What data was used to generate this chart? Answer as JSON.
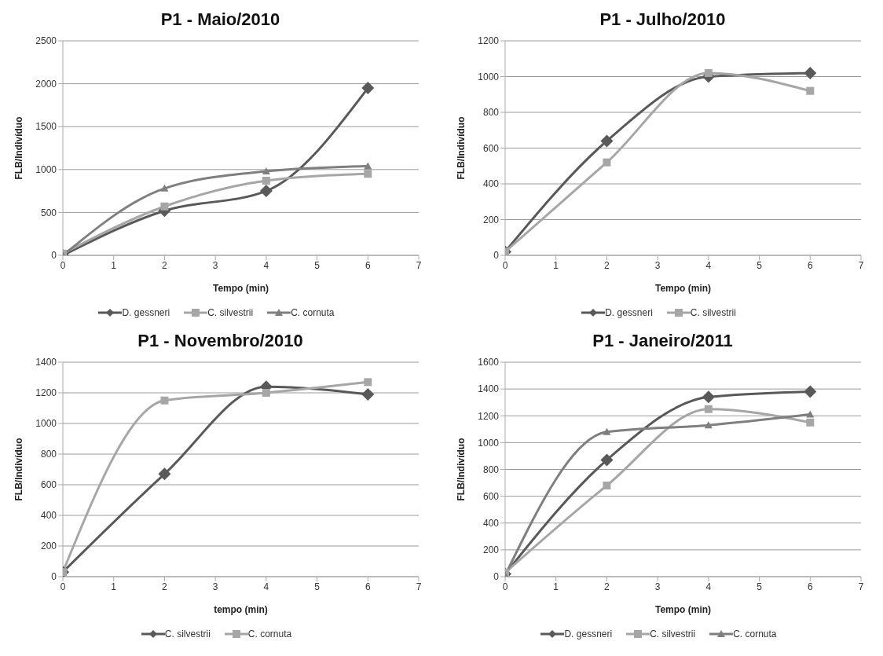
{
  "chart_data": [
    {
      "type": "line",
      "title": "P1 - Maio/2010",
      "xlabel": "Tempo (min)",
      "ylabel": "FLB/Indivíduo",
      "xlim": [
        0,
        7
      ],
      "xticks": [
        0,
        1,
        2,
        3,
        4,
        5,
        6,
        7
      ],
      "ylim": [
        0,
        2500
      ],
      "yticks": [
        0,
        500,
        1000,
        1500,
        2000,
        2500
      ],
      "grid": "y",
      "legend": "bottom",
      "x": [
        0,
        2,
        4,
        6
      ],
      "series": [
        {
          "name": "D. gessneri",
          "color": "#595959",
          "marker": "diamond",
          "values": [
            0,
            520,
            750,
            1950
          ]
        },
        {
          "name": "C. silvestrii",
          "color": "#a6a6a6",
          "marker": "square",
          "values": [
            20,
            570,
            870,
            950
          ]
        },
        {
          "name": "C. cornuta",
          "color": "#7f7f7f",
          "marker": "triangle",
          "values": [
            0,
            780,
            980,
            1040
          ]
        }
      ]
    },
    {
      "type": "line",
      "title": "P1 - Julho/2010",
      "xlabel": "Tempo (min)",
      "ylabel": "FLB/Indivíduo",
      "xlim": [
        0,
        7
      ],
      "xticks": [
        0,
        1,
        2,
        3,
        4,
        5,
        6,
        7
      ],
      "ylim": [
        0,
        1200
      ],
      "yticks": [
        0,
        200,
        400,
        600,
        800,
        1000,
        1200
      ],
      "grid": "y",
      "legend": "bottom",
      "x": [
        0,
        2,
        4,
        6
      ],
      "series": [
        {
          "name": "D. gessneri",
          "color": "#595959",
          "marker": "diamond",
          "values": [
            20,
            640,
            1000,
            1020
          ]
        },
        {
          "name": "C. silvestrii",
          "color": "#a6a6a6",
          "marker": "square",
          "values": [
            20,
            520,
            1020,
            920
          ]
        }
      ]
    },
    {
      "type": "line",
      "title": "P1 - Novembro/2010",
      "xlabel": "tempo (min)",
      "ylabel": "FLB/Indivíduo",
      "xlim": [
        0,
        7
      ],
      "xticks": [
        0,
        1,
        2,
        3,
        4,
        5,
        6,
        7
      ],
      "ylim": [
        0,
        1400
      ],
      "yticks": [
        0,
        200,
        400,
        600,
        800,
        1000,
        1200,
        1400
      ],
      "grid": "y",
      "legend": "bottom",
      "x": [
        0,
        2,
        4,
        6
      ],
      "series": [
        {
          "name": "C. silvestrii",
          "color": "#595959",
          "marker": "diamond",
          "values": [
            30,
            670,
            1240,
            1190
          ]
        },
        {
          "name": "C. cornuta",
          "color": "#a6a6a6",
          "marker": "square",
          "values": [
            30,
            1150,
            1200,
            1270
          ]
        }
      ]
    },
    {
      "type": "line",
      "title": "P1 - Janeiro/2011",
      "xlabel": "Tempo (min)",
      "ylabel": "FLB/Indivíduo",
      "xlim": [
        0,
        7
      ],
      "xticks": [
        0,
        1,
        2,
        3,
        4,
        5,
        6,
        7
      ],
      "ylim": [
        0,
        1600
      ],
      "yticks": [
        0,
        200,
        400,
        600,
        800,
        1000,
        1200,
        1400,
        1600
      ],
      "grid": "y",
      "legend": "bottom",
      "x": [
        0,
        2,
        4,
        6
      ],
      "series": [
        {
          "name": "D. gessneri",
          "color": "#595959",
          "marker": "diamond",
          "values": [
            20,
            870,
            1340,
            1380
          ]
        },
        {
          "name": "C. silvestrii",
          "color": "#a6a6a6",
          "marker": "square",
          "values": [
            30,
            680,
            1250,
            1150
          ]
        },
        {
          "name": "C. cornuta",
          "color": "#7f7f7f",
          "marker": "triangle",
          "values": [
            10,
            1080,
            1130,
            1210
          ]
        }
      ]
    }
  ]
}
